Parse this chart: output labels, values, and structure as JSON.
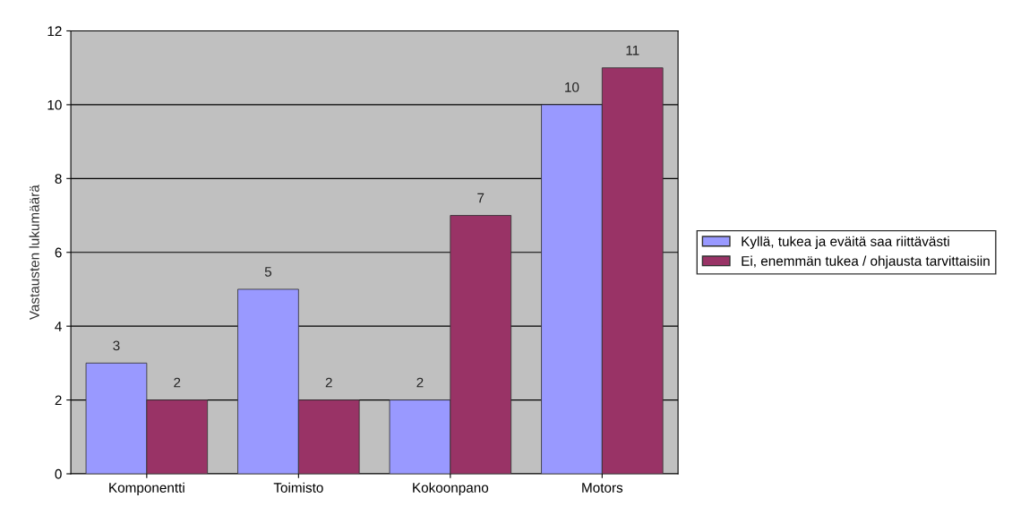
{
  "chart_data": {
    "type": "bar",
    "ylabel": "Vastausten lukumäärä",
    "categories": [
      "Komponentti",
      "Toimisto",
      "Kokoonpano",
      "Motors"
    ],
    "series": [
      {
        "name": "Kyllä, tukea ja eväitä saa riittävästi",
        "color": "#9999ff",
        "values": [
          3,
          5,
          2,
          10
        ]
      },
      {
        "name": "Ei, enemmän tukea / ohjausta tarvittaisiin",
        "color": "#993366",
        "values": [
          2,
          2,
          7,
          11
        ]
      }
    ],
    "ylim": [
      0,
      12
    ],
    "yticks": [
      0,
      2,
      4,
      6,
      8,
      10,
      12
    ],
    "grid": "y",
    "legend": "right",
    "data_labels": true
  }
}
